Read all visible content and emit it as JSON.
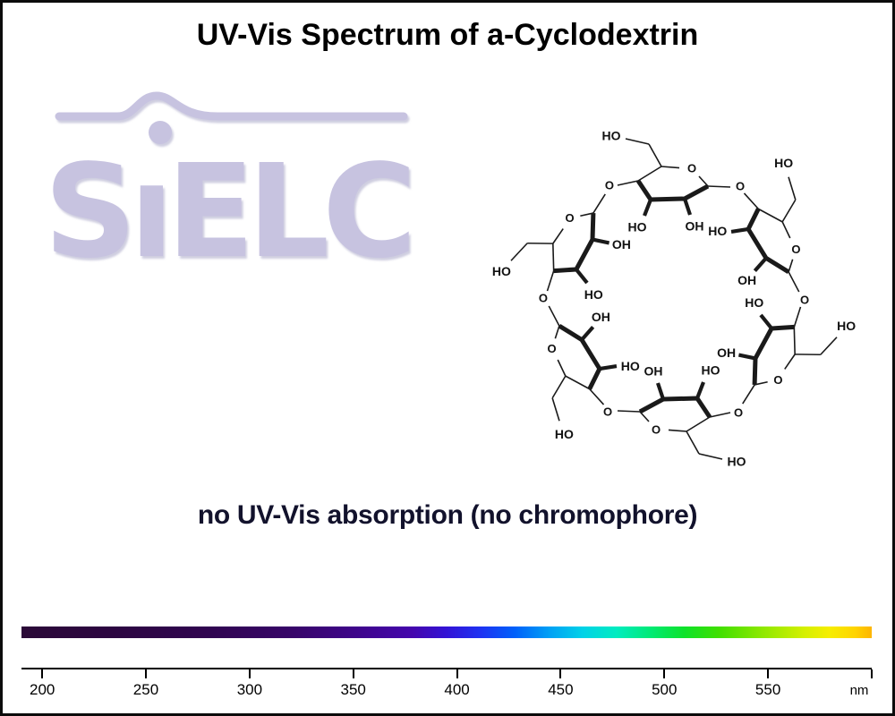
{
  "title": "UV-Vis Spectrum of a-Cyclodextrin",
  "watermark": {
    "text": "SiELC",
    "color": "#c7c3e0"
  },
  "molecule": {
    "name": "alpha-Cyclodextrin chemical structure",
    "glucose_units": 6,
    "atom_labels": {
      "ring_oxygen": "O",
      "glycosidic_oxygen": "O",
      "hydroxyl": "OH",
      "hydroxyl_left": "HO",
      "primary_alcohol": "HO"
    }
  },
  "annotation": {
    "text": "no UV-Vis absorption (no chromophore)",
    "color": "#12122c"
  },
  "chart_data": {
    "type": "line",
    "title": "UV-Vis Spectrum of a-Cyclodextrin",
    "xlabel": "nm",
    "xlim": [
      190,
      600
    ],
    "x_ticks": [
      200,
      250,
      300,
      350,
      400,
      450,
      500,
      550
    ],
    "series": [],
    "no_absorption": true,
    "annotation": "no UV-Vis absorption (no chromophore)",
    "colorbar_stops": [
      {
        "pos": 0,
        "color": "#2b0a38"
      },
      {
        "pos": 10,
        "color": "#2c0640"
      },
      {
        "pos": 22,
        "color": "#300550"
      },
      {
        "pos": 32,
        "color": "#370569"
      },
      {
        "pos": 40,
        "color": "#3f058e"
      },
      {
        "pos": 46,
        "color": "#4406ad"
      },
      {
        "pos": 50,
        "color": "#3313d6"
      },
      {
        "pos": 54,
        "color": "#1e32f2"
      },
      {
        "pos": 58,
        "color": "#0060fa"
      },
      {
        "pos": 62,
        "color": "#009ff5"
      },
      {
        "pos": 66,
        "color": "#00d2e8"
      },
      {
        "pos": 70,
        "color": "#00ecc0"
      },
      {
        "pos": 74,
        "color": "#00ea75"
      },
      {
        "pos": 78,
        "color": "#0ee22a"
      },
      {
        "pos": 82,
        "color": "#3fdf00"
      },
      {
        "pos": 87,
        "color": "#8ce800"
      },
      {
        "pos": 92,
        "color": "#d4f000"
      },
      {
        "pos": 95,
        "color": "#f6ee00"
      },
      {
        "pos": 98,
        "color": "#ffd400"
      },
      {
        "pos": 100,
        "color": "#feb501"
      }
    ]
  }
}
